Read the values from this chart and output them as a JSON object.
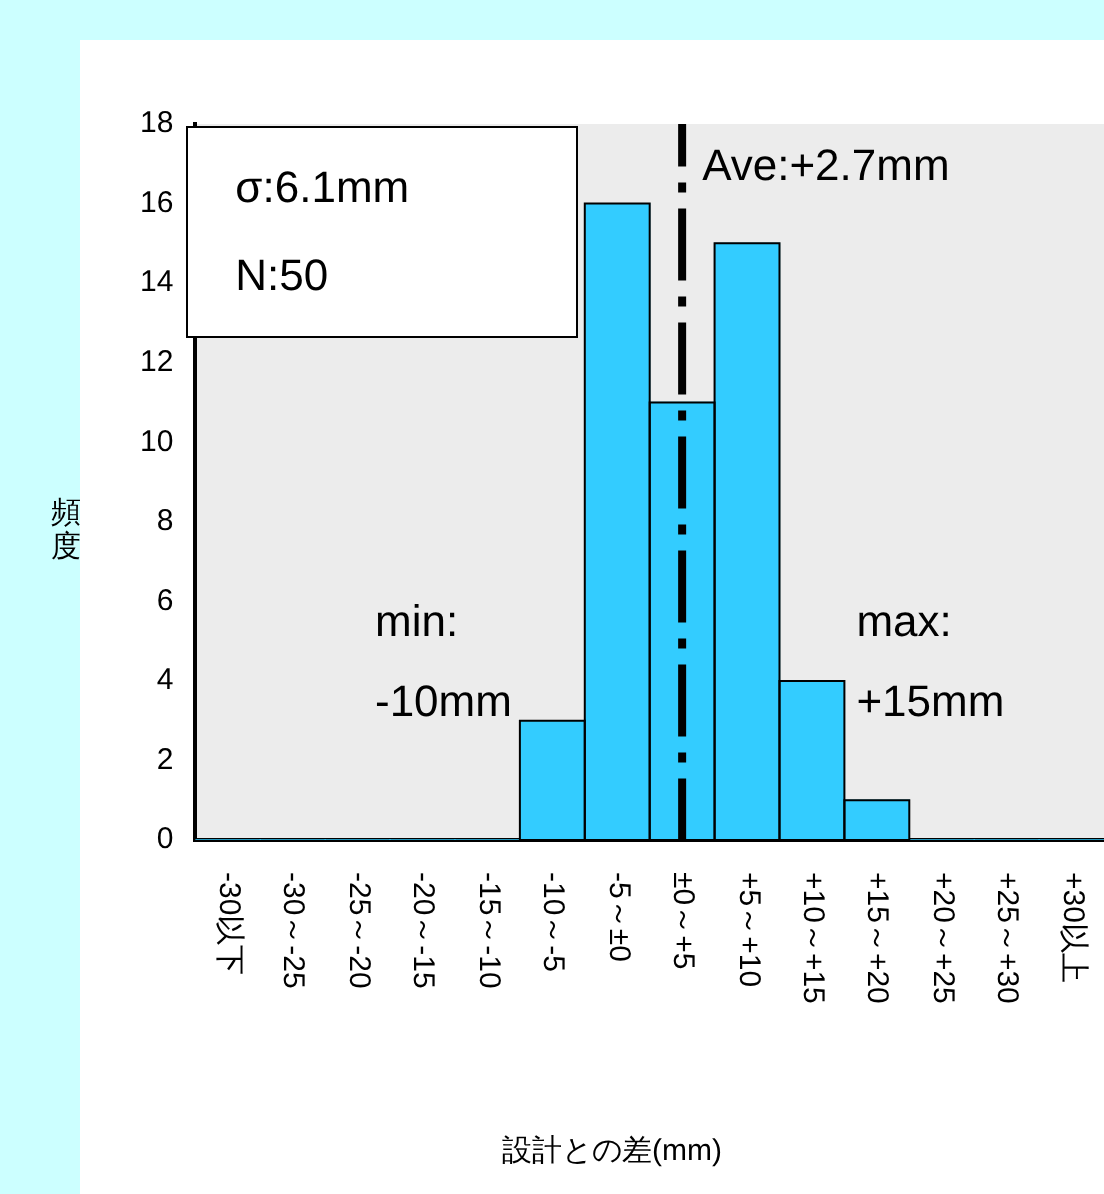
{
  "chart_data": {
    "type": "bar",
    "xlabel": "設計との差(mm)",
    "ylabel": "頻度",
    "categories": [
      "-30以下",
      "-30～-25",
      "-25～-20",
      "-20～-15",
      "-15～-10",
      "-10～-5",
      "-5～±0",
      "±0～+5",
      "+5～+10",
      "+10～+15",
      "+15～+20",
      "+20～+25",
      "+25～+30",
      "+30以上"
    ],
    "values": [
      0,
      0,
      0,
      0,
      0,
      3,
      16,
      11,
      15,
      4,
      1,
      0,
      0,
      0
    ],
    "color": "#33ccff",
    "ylim": [
      0,
      18
    ],
    "yticks": [
      0,
      2,
      4,
      6,
      8,
      10,
      12,
      14,
      16,
      18
    ],
    "grid": false,
    "ref_lines": [
      {
        "axis": "x",
        "value": "±0～+5",
        "label": "Ave:+2.7mm",
        "line_style": "dashed"
      }
    ],
    "annotations": [
      "σ:6.1mm",
      "N:50",
      "min:",
      "-10mm",
      "max:",
      "+15mm"
    ]
  }
}
